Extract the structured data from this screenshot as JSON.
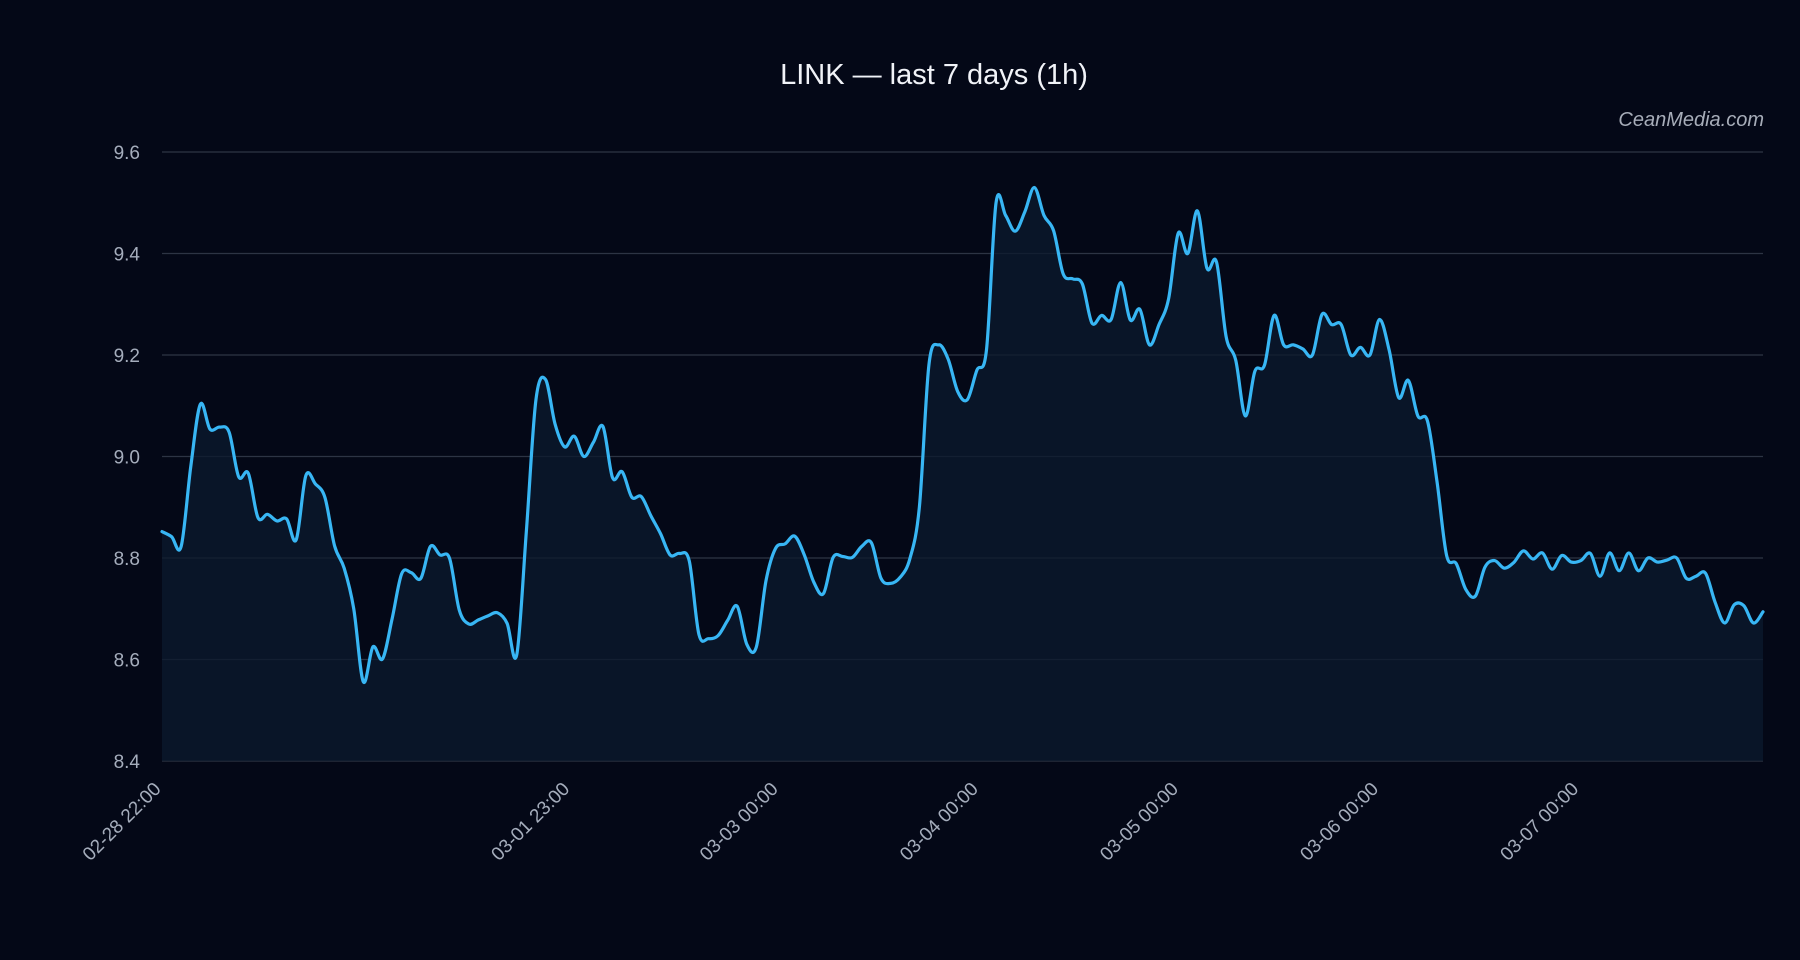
{
  "chart": {
    "title": "LINK — last 7 days (1h)",
    "watermark": "CeanMedia.com"
  },
  "colors": {
    "background": "#040817",
    "line": "#38b6f4",
    "area": "#0b1a2d",
    "grid": "#2d3444",
    "text": "#a5adbc"
  },
  "chart_data": {
    "type": "area",
    "title": "LINK — last 7 days (1h)",
    "xlabel": "",
    "ylabel": "",
    "ylim": [
      8.4,
      9.6
    ],
    "y_ticks": [
      8.4,
      8.6,
      8.8,
      9.0,
      9.2,
      9.4,
      9.6
    ],
    "x_start": "02-28 22:00",
    "x_end": "03-07 22:00",
    "x_ticks": [
      "02-28 22:00",
      "03-01 23:00",
      "03-03 00:00",
      "03-04 00:00",
      "03-05 00:00",
      "03-06 00:00",
      "03-07 00:00"
    ],
    "grid": true,
    "legend": "none",
    "series": [
      {
        "values": [
          8.852,
          8.842,
          8.823,
          8.98,
          9.103,
          9.054,
          9.058,
          9.048,
          8.96,
          8.967,
          8.88,
          8.886,
          8.873,
          8.877,
          8.836,
          8.962,
          8.946,
          8.919,
          8.824,
          8.78,
          8.7,
          8.556,
          8.625,
          8.601,
          8.68,
          8.769,
          8.771,
          8.76,
          8.823,
          8.806,
          8.799,
          8.698,
          8.67,
          8.678,
          8.686,
          8.692,
          8.671,
          8.609,
          8.851,
          9.111,
          9.152,
          9.064,
          9.019,
          9.04,
          9.0,
          9.028,
          9.059,
          8.958,
          8.97,
          8.92,
          8.921,
          8.883,
          8.848,
          8.806,
          8.809,
          8.794,
          8.65,
          8.641,
          8.647,
          8.677,
          8.705,
          8.63,
          8.625,
          8.755,
          8.819,
          8.828,
          8.843,
          8.806,
          8.752,
          8.73,
          8.801,
          8.803,
          8.801,
          8.823,
          8.83,
          8.76,
          8.75,
          8.762,
          8.798,
          8.9,
          9.181,
          9.22,
          9.192,
          9.128,
          9.112,
          9.17,
          9.21,
          9.5,
          9.475,
          9.444,
          9.482,
          9.53,
          9.475,
          9.445,
          9.36,
          9.35,
          9.34,
          9.263,
          9.278,
          9.27,
          9.343,
          9.269,
          9.29,
          9.22,
          9.26,
          9.311,
          9.44,
          9.4,
          9.484,
          9.371,
          9.383,
          9.236,
          9.19,
          9.08,
          9.168,
          9.18,
          9.278,
          9.22,
          9.22,
          9.212,
          9.2,
          9.28,
          9.26,
          9.26,
          9.2,
          9.215,
          9.2,
          9.27,
          9.21,
          9.116,
          9.15,
          9.08,
          9.07,
          8.95,
          8.805,
          8.789,
          8.738,
          8.725,
          8.782,
          8.795,
          8.78,
          8.791,
          8.814,
          8.798,
          8.81,
          8.778,
          8.805,
          8.792,
          8.795,
          8.809,
          8.764,
          8.81,
          8.775,
          8.81,
          8.775,
          8.8,
          8.792,
          8.796,
          8.8,
          8.76,
          8.764,
          8.77,
          8.713,
          8.672,
          8.708,
          8.706,
          8.672,
          8.694
        ]
      }
    ]
  }
}
